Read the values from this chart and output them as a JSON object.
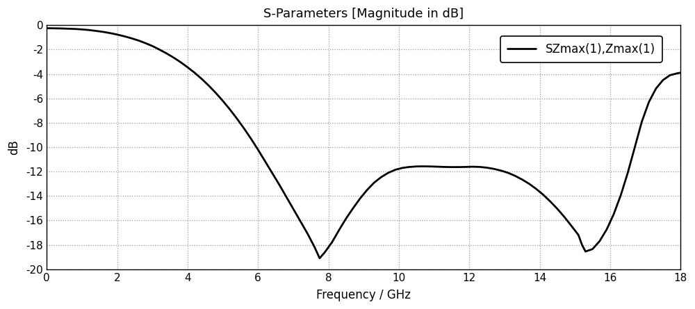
{
  "title": "S-Parameters [Magnitude in dB]",
  "xlabel": "Frequency / GHz",
  "ylabel": "dB",
  "legend_label": "SZmax(1),Zmax(1)",
  "xlim": [
    0,
    18
  ],
  "ylim": [
    -20,
    0
  ],
  "xticks": [
    0,
    2,
    4,
    6,
    8,
    10,
    12,
    14,
    16,
    18
  ],
  "yticks": [
    0,
    -2,
    -4,
    -6,
    -8,
    -10,
    -12,
    -14,
    -16,
    -18,
    -20
  ],
  "line_color": "#000000",
  "line_width": 2.0,
  "background_color": "#ffffff",
  "grid_color": "#999999",
  "figsize": [
    10.0,
    4.45
  ],
  "dpi": 100,
  "font_family": "Arial",
  "curve_x": [
    0.0,
    0.2,
    0.4,
    0.6,
    0.8,
    1.0,
    1.2,
    1.4,
    1.6,
    1.8,
    2.0,
    2.2,
    2.4,
    2.6,
    2.8,
    3.0,
    3.2,
    3.4,
    3.6,
    3.8,
    4.0,
    4.2,
    4.4,
    4.6,
    4.8,
    5.0,
    5.2,
    5.4,
    5.6,
    5.8,
    6.0,
    6.2,
    6.4,
    6.6,
    6.8,
    7.0,
    7.2,
    7.4,
    7.6,
    7.75,
    7.9,
    8.1,
    8.3,
    8.5,
    8.7,
    8.9,
    9.1,
    9.3,
    9.5,
    9.7,
    9.9,
    10.1,
    10.3,
    10.5,
    10.7,
    10.9,
    11.1,
    11.3,
    11.5,
    11.7,
    11.9,
    12.1,
    12.3,
    12.5,
    12.7,
    12.9,
    13.1,
    13.3,
    13.5,
    13.7,
    13.9,
    14.1,
    14.3,
    14.5,
    14.7,
    14.9,
    15.1,
    15.2,
    15.3,
    15.5,
    15.7,
    15.9,
    16.1,
    16.3,
    16.5,
    16.7,
    16.9,
    17.1,
    17.3,
    17.5,
    17.7,
    17.9,
    18.0
  ],
  "curve_y": [
    -0.25,
    -0.26,
    -0.27,
    -0.29,
    -0.31,
    -0.35,
    -0.4,
    -0.47,
    -0.55,
    -0.65,
    -0.77,
    -0.91,
    -1.07,
    -1.25,
    -1.47,
    -1.71,
    -2.0,
    -2.31,
    -2.65,
    -3.03,
    -3.45,
    -3.9,
    -4.4,
    -4.95,
    -5.55,
    -6.2,
    -6.9,
    -7.65,
    -8.45,
    -9.3,
    -10.2,
    -11.15,
    -12.1,
    -13.05,
    -14.05,
    -15.05,
    -16.05,
    -17.05,
    -18.15,
    -19.1,
    -18.6,
    -17.8,
    -16.8,
    -15.85,
    -15.0,
    -14.2,
    -13.5,
    -12.9,
    -12.45,
    -12.1,
    -11.85,
    -11.7,
    -11.62,
    -11.58,
    -11.57,
    -11.58,
    -11.6,
    -11.62,
    -11.63,
    -11.63,
    -11.62,
    -11.6,
    -11.62,
    -11.68,
    -11.78,
    -11.92,
    -12.1,
    -12.35,
    -12.65,
    -13.0,
    -13.42,
    -13.9,
    -14.45,
    -15.05,
    -15.72,
    -16.45,
    -17.2,
    -18.0,
    -18.55,
    -18.35,
    -17.7,
    -16.75,
    -15.5,
    -13.95,
    -12.1,
    -10.0,
    -7.9,
    -6.3,
    -5.2,
    -4.5,
    -4.1,
    -3.95,
    -3.9
  ]
}
